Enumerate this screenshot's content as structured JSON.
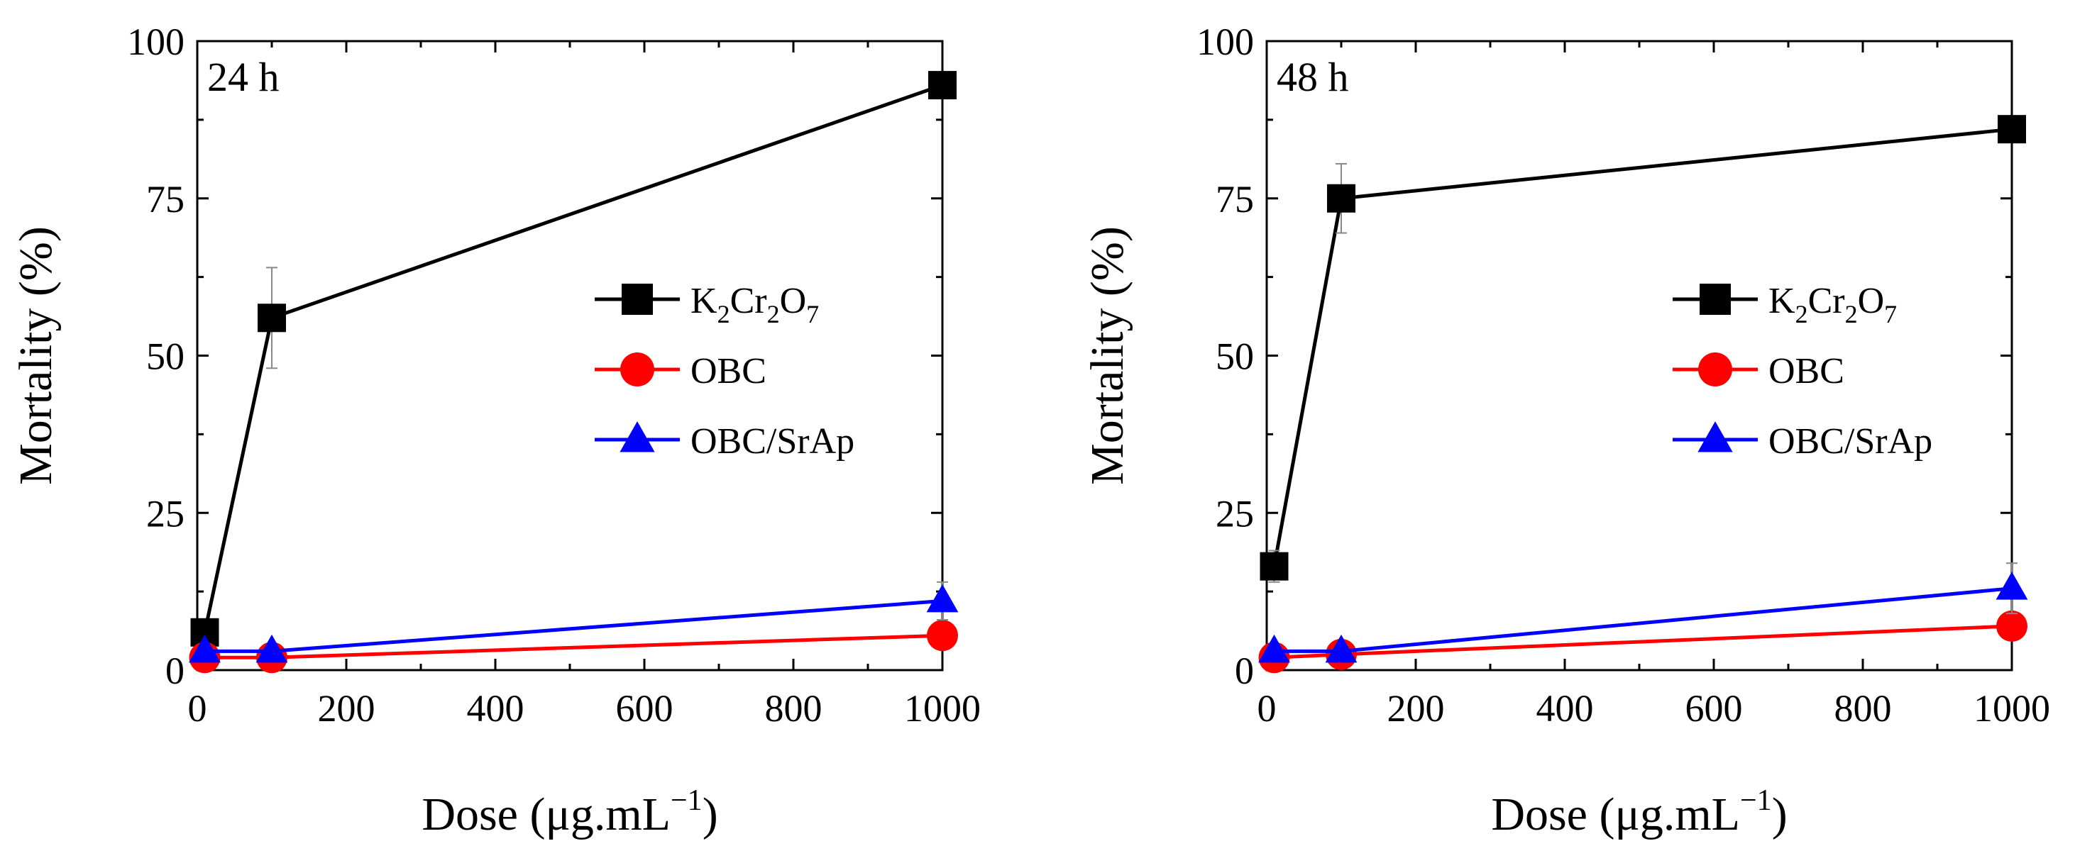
{
  "chart_data": [
    {
      "type": "line",
      "panel": "left",
      "annotation": "24 h",
      "xlabel": "Dose (μg.mL",
      "xlabel_sup": "−1",
      "xlabel_end": ")",
      "ylabel": "Mortality (%)",
      "xlim": [
        0,
        1000
      ],
      "ylim": [
        0,
        100
      ],
      "xticks": [
        0,
        200,
        400,
        600,
        800,
        1000
      ],
      "yticks": [
        0,
        25,
        50,
        75,
        100
      ],
      "legend_position": "center-right",
      "series": [
        {
          "name": "K2Cr2O7",
          "legend_label": {
            "base": "K",
            "s1": "2",
            "mid": "Cr",
            "s2": "2",
            "o": "O",
            "s3": "7"
          },
          "color": "#000000",
          "marker": "square",
          "x": [
            10,
            100,
            1000
          ],
          "y": [
            6,
            56,
            93
          ],
          "err": [
            2,
            8,
            2
          ]
        },
        {
          "name": "OBC",
          "legend_label": {
            "base": "OBC"
          },
          "color": "#ff0000",
          "marker": "circle",
          "x": [
            10,
            100,
            1000
          ],
          "y": [
            2,
            2,
            5.5
          ],
          "err": [
            0,
            0,
            0
          ]
        },
        {
          "name": "OBC/SrAp",
          "legend_label": {
            "base": "OBC/SrAp"
          },
          "color": "#0000ff",
          "marker": "triangle",
          "x": [
            10,
            100,
            1000
          ],
          "y": [
            3,
            3,
            11
          ],
          "err": [
            0,
            0,
            3
          ]
        }
      ]
    },
    {
      "type": "line",
      "panel": "right",
      "annotation": "48 h",
      "xlabel": "Dose (μg.mL",
      "xlabel_sup": "−1",
      "xlabel_end": ")",
      "ylabel": "Mortality (%)",
      "xlim": [
        0,
        1000
      ],
      "ylim": [
        0,
        100
      ],
      "xticks": [
        0,
        200,
        400,
        600,
        800,
        1000
      ],
      "yticks": [
        0,
        25,
        50,
        75,
        100
      ],
      "legend_position": "center-right",
      "series": [
        {
          "name": "K2Cr2O7",
          "legend_label": {
            "base": "K",
            "s1": "2",
            "mid": "Cr",
            "s2": "2",
            "o": "O",
            "s3": "7"
          },
          "color": "#000000",
          "marker": "square",
          "x": [
            10,
            100,
            1000
          ],
          "y": [
            16.5,
            75,
            86
          ],
          "err": [
            2.5,
            5.5,
            2
          ]
        },
        {
          "name": "OBC",
          "legend_label": {
            "base": "OBC"
          },
          "color": "#ff0000",
          "marker": "circle",
          "x": [
            10,
            100,
            1000
          ],
          "y": [
            2,
            2.5,
            7
          ],
          "err": [
            0,
            0,
            0
          ]
        },
        {
          "name": "OBC/SrAp",
          "legend_label": {
            "base": "OBC/SrAp"
          },
          "color": "#0000ff",
          "marker": "triangle",
          "x": [
            10,
            100,
            1000
          ],
          "y": [
            3,
            3,
            13
          ],
          "err": [
            0,
            0,
            4
          ]
        }
      ]
    }
  ]
}
